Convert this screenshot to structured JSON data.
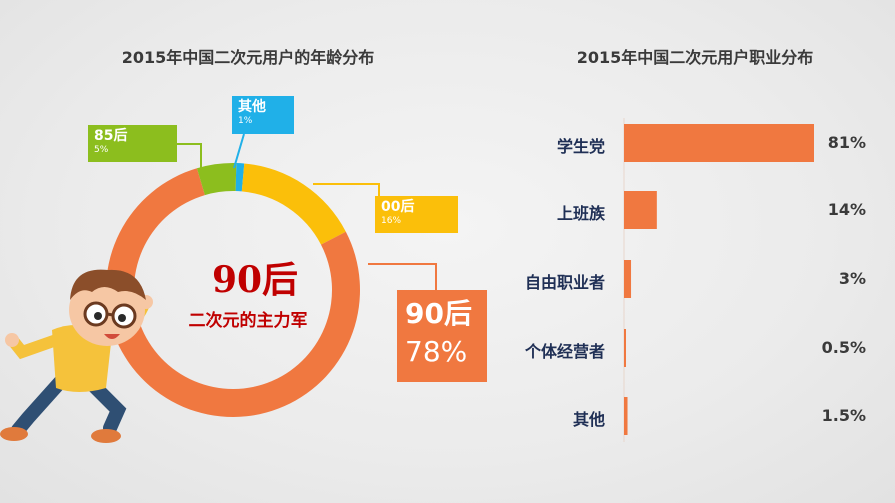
{
  "left_title": "2015年中国二次元用户的年龄分布",
  "right_title": "2015年中国二次元用户职业分布",
  "donut_center": {
    "headline": "90后",
    "subline": "二次元的主力军"
  },
  "callouts": {
    "qita": {
      "label": "其他",
      "pct": "1%"
    },
    "c85": {
      "label": "85后",
      "pct": "5%"
    },
    "c00": {
      "label": "00后",
      "pct": "16%"
    },
    "c90": {
      "label": "90后",
      "pct": "78%"
    }
  },
  "colors": {
    "orange": "#f07840",
    "yellow": "#fbbf0a",
    "green": "#8cbe1e",
    "blue": "#20b0e8",
    "navy": "#1f2f55",
    "red_text": "#c00000"
  },
  "chart_data": [
    {
      "type": "pie",
      "title": "2015年中国二次元用户的年龄分布",
      "categories": [
        "其他",
        "00后",
        "90后",
        "85后"
      ],
      "values": [
        1,
        16,
        78,
        5
      ],
      "colors": [
        "#20b0e8",
        "#fbbf0a",
        "#f07840",
        "#8cbe1e"
      ],
      "donut": true
    },
    {
      "type": "bar",
      "orientation": "horizontal",
      "title": "2015年中国二次元用户职业分布",
      "categories": [
        "学生党",
        "上班族",
        "自由职业者",
        "个体经营者",
        "其他"
      ],
      "values": [
        81,
        14,
        3,
        0.5,
        1.5
      ],
      "value_labels": [
        "81%",
        "14%",
        "3%",
        "0.5%",
        "1.5%"
      ],
      "xlim": [
        0,
        100
      ],
      "color": "#f07840"
    }
  ]
}
